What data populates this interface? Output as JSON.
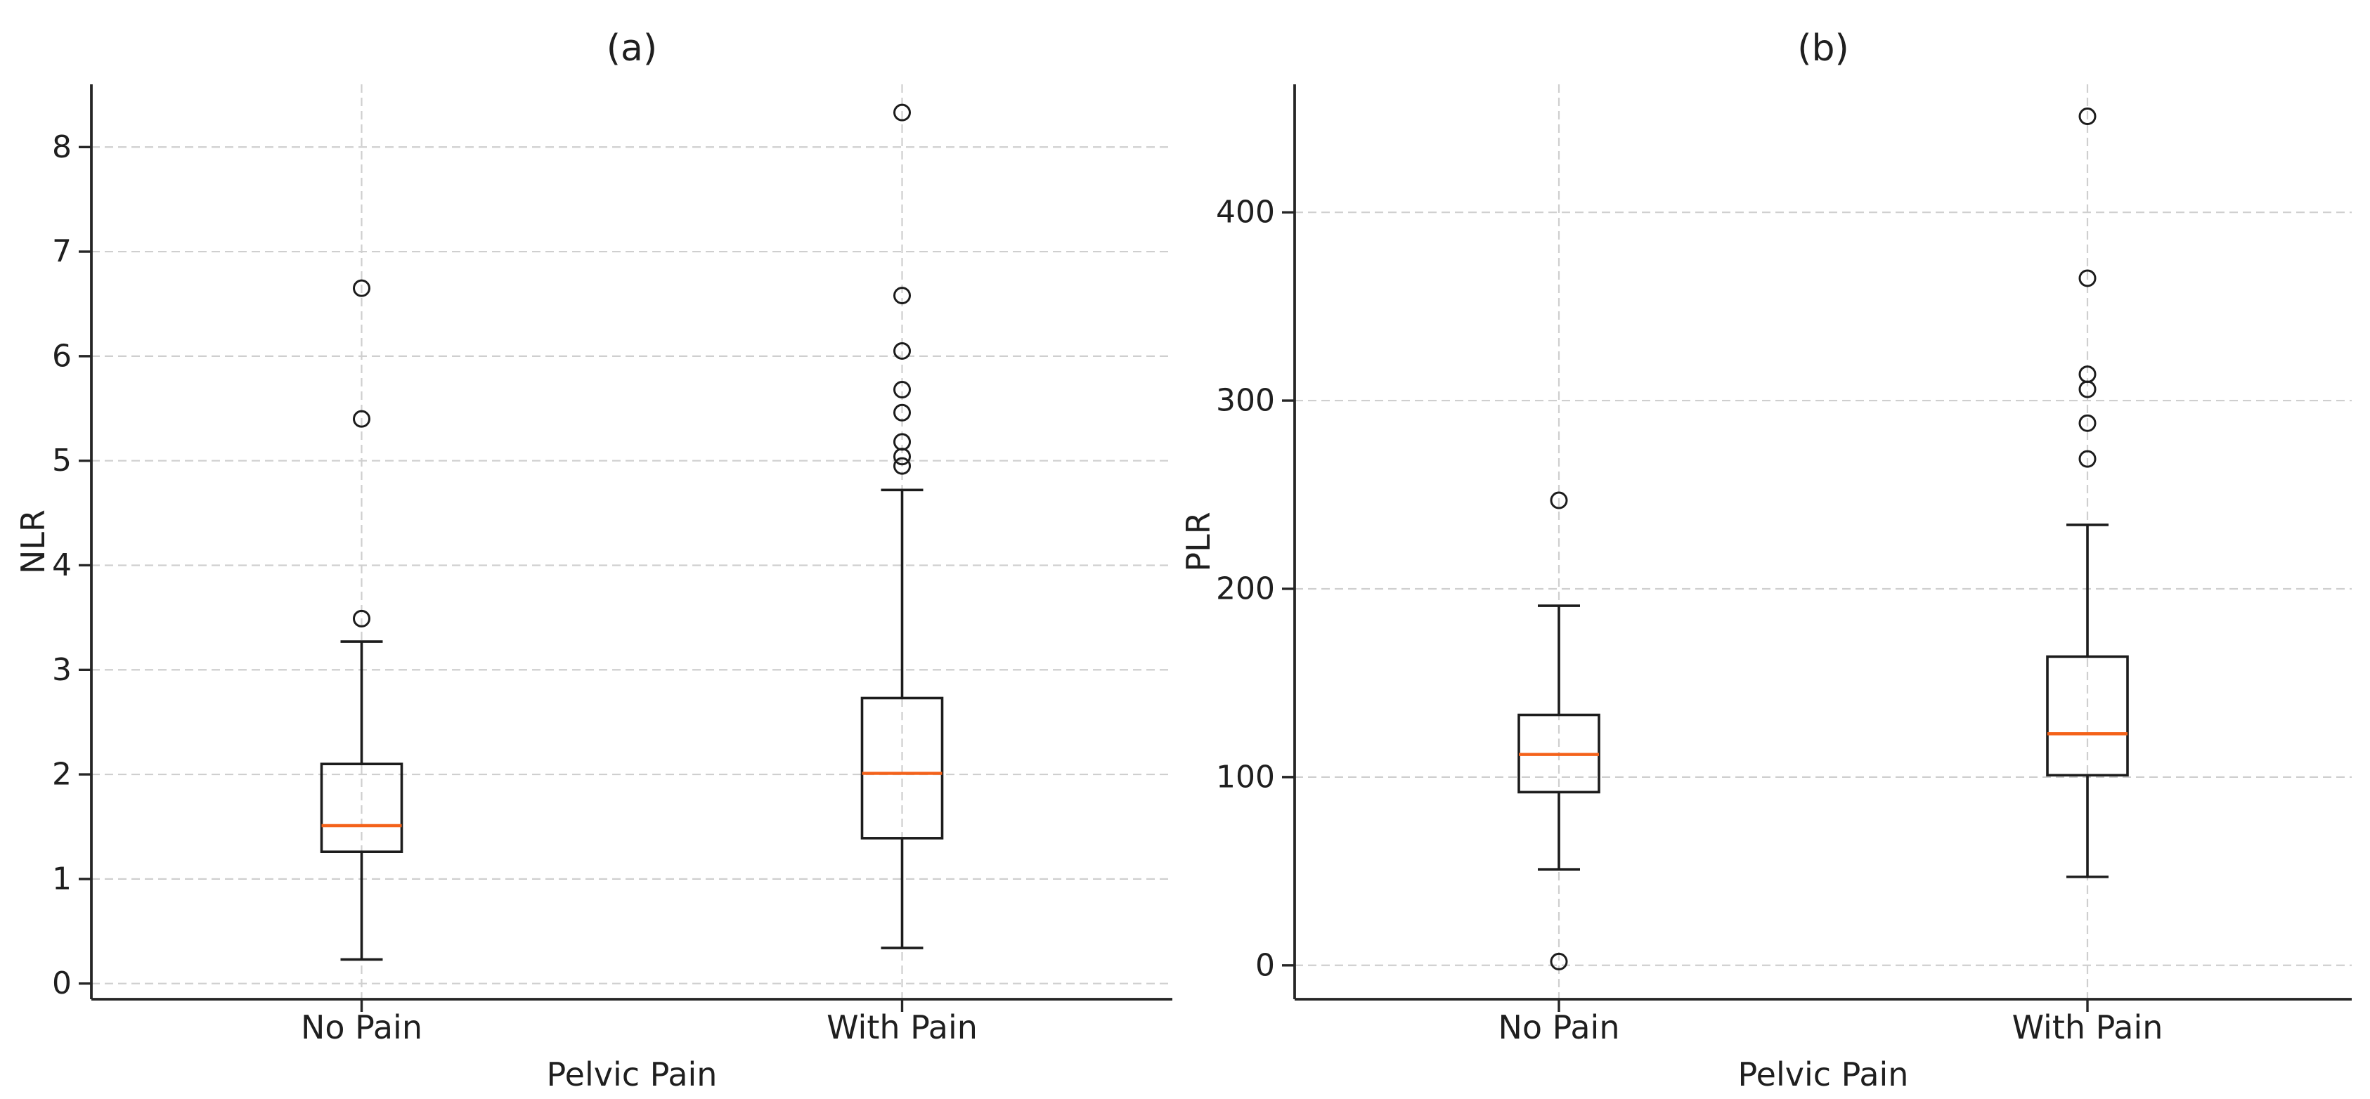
{
  "figure": {
    "kind": "boxplot-figure",
    "background": "#ffffff"
  },
  "colors": {
    "median_line": "#f4621a",
    "box_line": "#1c1c1c",
    "whisker_line": "#1c1c1c",
    "outlier_stroke": "#1c1c1c",
    "grid_line": "#cfcfcf",
    "spine": "#262626",
    "text": "#1f1f1f",
    "background": "#ffffff"
  },
  "chart_data": [
    {
      "panel_id": "a",
      "type": "box",
      "title": "(a)",
      "xlabel": "Pelvic Pain",
      "ylabel": "NLR",
      "categories": [
        "No Pain",
        "With Pain"
      ],
      "yticks": [
        0,
        1,
        2,
        3,
        4,
        5,
        6,
        7,
        8
      ],
      "ylim": [
        -0.15,
        8.6
      ],
      "grid": "both-dashed",
      "legend": "none",
      "boxes": [
        {
          "category": "No Pain",
          "whislo": 0.23,
          "q1": 1.26,
          "med": 1.51,
          "q3": 2.1,
          "whishi": 3.27,
          "outliers": [
            3.49,
            5.4,
            6.65
          ]
        },
        {
          "category": "With Pain",
          "whislo": 0.34,
          "q1": 1.39,
          "med": 2.01,
          "q3": 2.73,
          "whishi": 4.72,
          "outliers": [
            4.95,
            5.04,
            5.18,
            5.46,
            5.68,
            6.05,
            6.58,
            8.33
          ]
        }
      ]
    },
    {
      "panel_id": "b",
      "type": "box",
      "title": "(b)",
      "xlabel": "Pelvic Pain",
      "ylabel": "PLR",
      "categories": [
        "No Pain",
        "With Pain"
      ],
      "yticks": [
        0,
        100,
        200,
        300,
        400
      ],
      "ylim": [
        -18,
        468
      ],
      "grid": "both-dashed",
      "legend": "none",
      "boxes": [
        {
          "category": "No Pain",
          "whislo": 51,
          "q1": 92,
          "med": 112,
          "q3": 133,
          "whishi": 191,
          "outliers": [
            2,
            247
          ]
        },
        {
          "category": "With Pain",
          "whislo": 47,
          "q1": 101,
          "med": 123,
          "q3": 164,
          "whishi": 234,
          "outliers": [
            269,
            288,
            306,
            314,
            365,
            451
          ]
        }
      ]
    }
  ]
}
